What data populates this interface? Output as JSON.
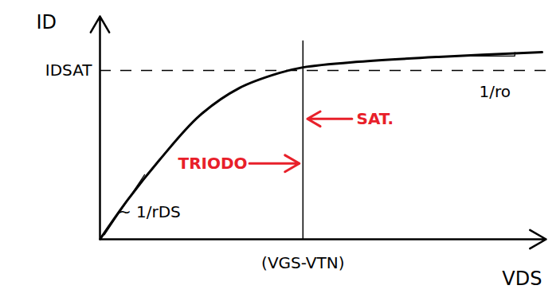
{
  "chart_data": {
    "type": "line",
    "x": [
      0,
      0.63,
      1.34,
      2.23,
      3.13,
      4.02,
      4.55,
      5.8,
      7.59,
      9.91
    ],
    "values": [
      0,
      1.79,
      3.57,
      5.54,
      6.79,
      7.46,
      7.71,
      7.96,
      8.18,
      8.39
    ],
    "xlim": [
      0,
      10
    ],
    "ylim": [
      0,
      10
    ],
    "xticks": [
      {
        "value": 4.55,
        "label": "(VGS-VTN)"
      }
    ],
    "yticks": [
      {
        "value": 7.57,
        "label": "IDSAT"
      }
    ],
    "x_label": "VDS",
    "y_label": "ID",
    "grid": true,
    "color": "#000000",
    "annotations": [
      {
        "text": "TRIODO",
        "color": "#e8202a"
      },
      {
        "text": "SAT.",
        "color": "#e8202a"
      },
      {
        "text": "~ 1/rDS",
        "color": "#000000"
      },
      {
        "text": "1/ro",
        "color": "#000000"
      }
    ]
  }
}
